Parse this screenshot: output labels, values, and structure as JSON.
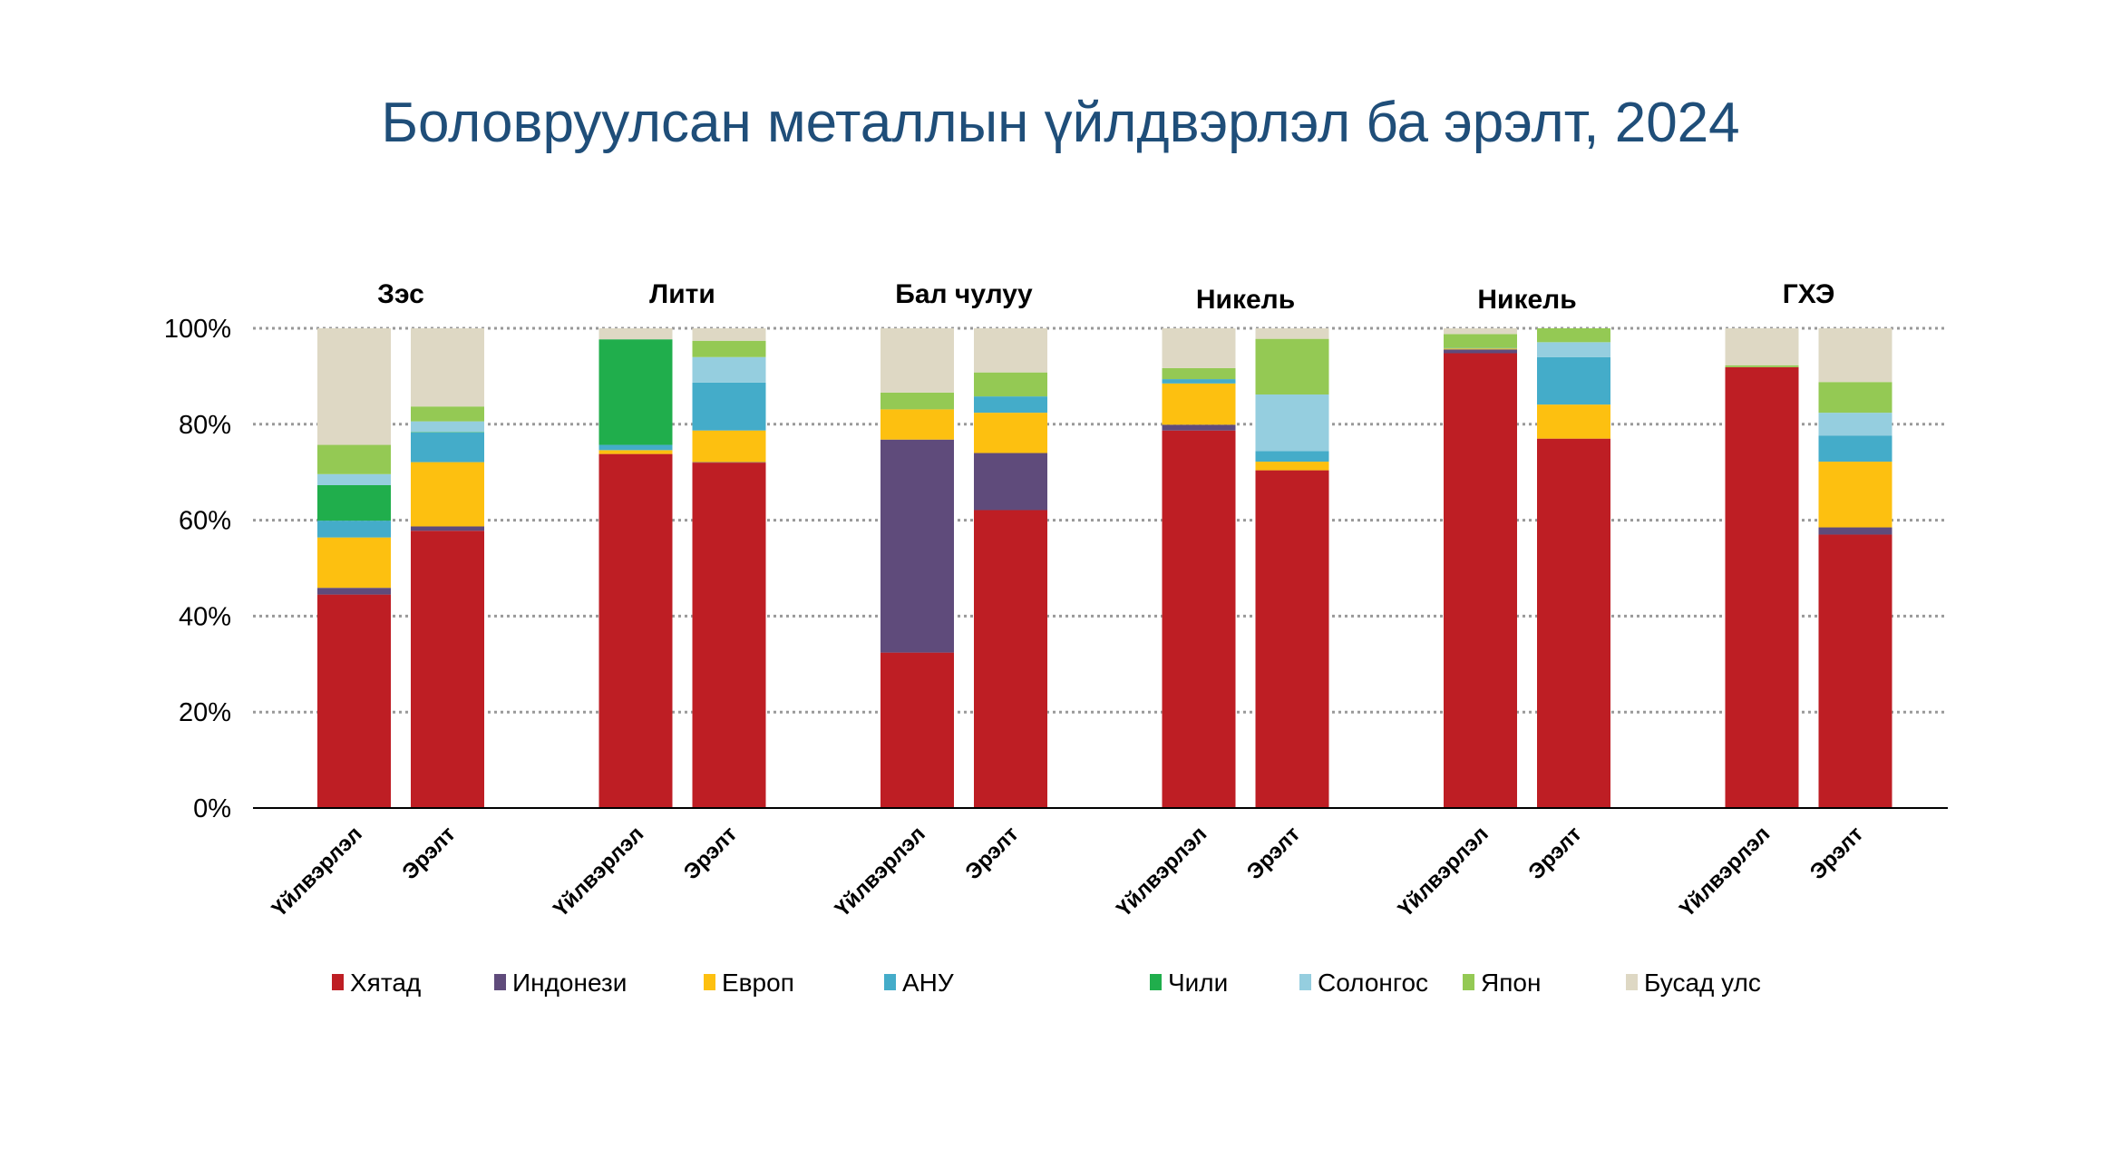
{
  "chart_data": {
    "type": "bar",
    "stacked": true,
    "title": "Боловруулсан металлын үйлдвэрлэл ба эрэлт, 2024",
    "ylim": [
      0,
      100
    ],
    "yticks": [
      "0%",
      "20%",
      "40%",
      "60%",
      "80%",
      "100%"
    ],
    "grid": true,
    "legend_position": "bottom",
    "groups": [
      "Зэс",
      "Лити",
      "Бал чулуу",
      "Никель",
      "Никель",
      "ГХЭ"
    ],
    "bar_labels": [
      "Үйлвэрлэл",
      "Эрэлт"
    ],
    "series_names": [
      "Хятад",
      "Индонези",
      "Европ",
      "АНУ",
      "Чили",
      "Солонгос",
      "Япон",
      "Бусад улс"
    ],
    "colors": [
      "#BE1E24",
      "#5F4B7B",
      "#FDC010",
      "#44ACC9",
      "#20AE4C",
      "#95CEDF",
      "#94C954",
      "#DED8C4"
    ],
    "bars": [
      {
        "group": "Зэс",
        "label": "Үйлвэрлэл",
        "values": [
          44.5,
          1.4,
          10.5,
          3.5,
          7.4,
          2.3,
          6.1,
          24.3
        ]
      },
      {
        "group": "Зэс",
        "label": "Эрэлт",
        "values": [
          57.8,
          0.9,
          13.4,
          6.2,
          0.1,
          2.2,
          3.1,
          16.3
        ]
      },
      {
        "group": "Лити",
        "label": "Үйлвэрлэл",
        "values": [
          73.8,
          0,
          0.8,
          1.1,
          22.0,
          0,
          0,
          2.3
        ]
      },
      {
        "group": "Лити",
        "label": "Эрэлт",
        "values": [
          72.0,
          0.1,
          6.6,
          10.0,
          0,
          5.3,
          3.4,
          2.6
        ]
      },
      {
        "group": "Бал чулуу",
        "label": "Үйлвэрлэл",
        "values": [
          32.4,
          44.4,
          6.3,
          0,
          0,
          0,
          3.5,
          13.4
        ]
      },
      {
        "group": "Бал чулуу",
        "label": "Эрэлт",
        "values": [
          62.1,
          11.9,
          8.4,
          3.4,
          0,
          0,
          5.0,
          9.2
        ]
      },
      {
        "group": "Никель",
        "label": "Үйлвэрлэл",
        "values": [
          78.7,
          1.2,
          8.6,
          0.9,
          0,
          0,
          2.3,
          8.3
        ]
      },
      {
        "group": "Никель",
        "label": "Эрэлт",
        "values": [
          70.4,
          0,
          1.8,
          2.2,
          0,
          11.8,
          11.6,
          2.2
        ]
      },
      {
        "group": "Никель",
        "label": "Үйлвэрлэл",
        "values": [
          94.8,
          0.8,
          0.2,
          0.1,
          0,
          0,
          2.9,
          1.2
        ]
      },
      {
        "group": "Никель",
        "label": "Эрэлт",
        "values": [
          77.0,
          0,
          7.1,
          9.9,
          0,
          3.1,
          2.9,
          0
        ]
      },
      {
        "group": "ГХЭ",
        "label": "Үйлвэрлэл",
        "values": [
          91.9,
          0,
          0,
          0,
          0,
          0,
          0.4,
          7.7
        ]
      },
      {
        "group": "ГХЭ",
        "label": "Эрэлт",
        "values": [
          57.0,
          1.5,
          13.7,
          5.4,
          0,
          4.8,
          6.4,
          11.2
        ]
      }
    ]
  }
}
